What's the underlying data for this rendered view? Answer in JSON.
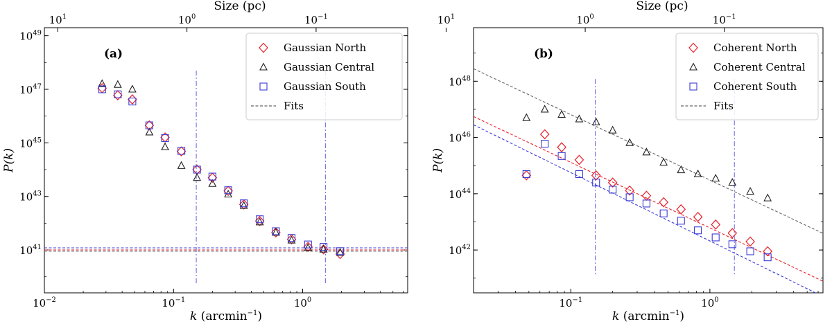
{
  "chart_data": [
    {
      "type": "scatter",
      "panel": "(a)",
      "xlabel_base": "k (arcmin",
      "xlabel_exp": "−1",
      "xlabel_end": ")",
      "ylabel": "P(k)",
      "top_axis_label": "Size (pc)",
      "xscale": "log",
      "yscale": "log",
      "xlim": [
        0.01,
        6.5
      ],
      "ylim": [
        2.5e+39,
        2e+49
      ],
      "x_ticks": [
        {
          "value": 0.01,
          "base": "10",
          "exp": "−2"
        },
        {
          "value": 0.1,
          "base": "10",
          "exp": "−1"
        },
        {
          "value": 1,
          "base": "10",
          "exp": "0"
        }
      ],
      "y_ticks": [
        {
          "value": 1e+41,
          "base": "10",
          "exp": "41"
        },
        {
          "value": 1e+43,
          "base": "10",
          "exp": "43"
        },
        {
          "value": 1e+45,
          "base": "10",
          "exp": "45"
        },
        {
          "value": 1e+47,
          "base": "10",
          "exp": "47"
        },
        {
          "value": 1e+49,
          "base": "10",
          "exp": "49"
        }
      ],
      "top_ticks": [
        {
          "value": 0.0127,
          "base": "10",
          "exp": "1"
        },
        {
          "value": 0.127,
          "base": "10",
          "exp": "0"
        },
        {
          "value": 1.27,
          "base": "10",
          "exp": "−1"
        }
      ],
      "vlines": [
        0.15,
        1.5
      ],
      "vline_yrange": [
        5e+39,
        5e+47
      ],
      "legend_position": "top-right",
      "series": [
        {
          "name": "Gaussian North",
          "marker": "diamond",
          "color": "#e8202a",
          "x": [
            0.028,
            0.037,
            0.048,
            0.065,
            0.086,
            0.115,
            0.152,
            0.2,
            0.265,
            0.35,
            0.465,
            0.62,
            0.82,
            1.1,
            1.45,
            1.95
          ],
          "y": [
            1.1e+47,
            6e+46,
            4.2e+46,
            4.5e+45,
            1.6e+45,
            4.8e+44,
            1e+44,
            5e+43,
            1.6e+43,
            5e+42,
            1.2e+42,
            4.5e+41,
            2.5e+41,
            1.3e+41,
            1.05e+41,
            7e+40
          ]
        },
        {
          "name": "Gaussian Central",
          "marker": "triangle",
          "color": "#222222",
          "x": [
            0.028,
            0.037,
            0.048,
            0.065,
            0.086,
            0.115,
            0.152,
            0.2,
            0.265,
            0.35,
            0.465,
            0.62,
            0.82,
            1.1,
            1.45,
            1.95
          ],
          "y": [
            1.6e+47,
            1.5e+47,
            1e+47,
            2.5e+45,
            7e+44,
            1.4e+44,
            5e+43,
            3e+43,
            1.2e+43,
            4.5e+42,
            1.1e+42,
            4.5e+41,
            2.3e+41,
            1.2e+41,
            1.05e+41,
            8e+40
          ]
        },
        {
          "name": "Gaussian South",
          "marker": "square",
          "color": "#3b3bd4",
          "x": [
            0.028,
            0.037,
            0.048,
            0.065,
            0.086,
            0.115,
            0.152,
            0.2,
            0.265,
            0.35,
            0.465,
            0.62,
            0.82,
            1.1,
            1.45,
            1.95
          ],
          "y": [
            1e+47,
            6.5e+46,
            3.5e+46,
            4.5e+45,
            1.5e+45,
            5e+44,
            1e+44,
            5.5e+43,
            1.7e+43,
            5.5e+42,
            1.4e+42,
            5e+41,
            2.8e+41,
            1.6e+41,
            1.3e+41,
            9e+40
          ]
        }
      ],
      "fits": [
        {
          "name": "Gaussian North fit",
          "color": "#e8202a",
          "A": 0.76,
          "alpha": 3.4,
          "floor": 1e+41
        },
        {
          "name": "Gaussian South fit",
          "color": "#3b3bd4",
          "A": 0.55,
          "alpha": 3.5,
          "floor": 1.2e+41
        },
        {
          "name": "Gaussian Central fit",
          "color": "#666666",
          "A": 0.00025,
          "alpha": 2.85,
          "floor": 9e+40
        }
      ],
      "legend": [
        {
          "label": "Gaussian North",
          "marker": "diamond",
          "color": "#e8202a"
        },
        {
          "label": "Gaussian Central",
          "marker": "triangle",
          "color": "#222222"
        },
        {
          "label": "Gaussian South",
          "marker": "square",
          "color": "#3b3bd4"
        },
        {
          "label": "Fits",
          "marker": "dash",
          "color": "#666666"
        }
      ]
    },
    {
      "type": "scatter",
      "panel": "(b)",
      "xlabel_base": "k (arcmin",
      "xlabel_exp": "−1",
      "xlabel_end": ")",
      "ylabel": "P(k)",
      "top_axis_label": "Size (pc)",
      "xscale": "log",
      "yscale": "log",
      "xlim": [
        0.02,
        6.5
      ],
      "ylim": [
        3e+40,
        8e+49
      ],
      "x_ticks": [
        {
          "value": 0.1,
          "base": "10",
          "exp": "−1"
        },
        {
          "value": 1,
          "base": "10",
          "exp": "0"
        }
      ],
      "y_ticks": [
        {
          "value": 1e+42,
          "base": "10",
          "exp": "42"
        },
        {
          "value": 1e+44,
          "base": "10",
          "exp": "44"
        },
        {
          "value": 1e+46,
          "base": "10",
          "exp": "46"
        },
        {
          "value": 1e+48,
          "base": "10",
          "exp": "48"
        }
      ],
      "top_ticks": [
        {
          "value": 0.0127,
          "base": "10",
          "exp": "1"
        },
        {
          "value": 0.127,
          "base": "10",
          "exp": "0"
        },
        {
          "value": 1.27,
          "base": "10",
          "exp": "−1"
        }
      ],
      "vlines": [
        0.15,
        1.5
      ],
      "vline_yrange": [
        1.2e+41,
        1.2e+48
      ],
      "legend_position": "top-right",
      "series": [
        {
          "name": "Coherent North",
          "marker": "diamond",
          "color": "#e8202a",
          "x": [
            0.048,
            0.065,
            0.086,
            0.115,
            0.152,
            0.2,
            0.265,
            0.35,
            0.465,
            0.62,
            0.82,
            1.1,
            1.45,
            1.95,
            2.6
          ],
          "y": [
            4.5e+44,
            1.3e+46,
            4.5e+45,
            1.6e+45,
            4.5e+44,
            2.5e+44,
            1.3e+44,
            8.5e+43,
            5e+43,
            2.8e+43,
            1.5e+43,
            8e+42,
            4e+42,
            2e+42,
            9e+41
          ]
        },
        {
          "name": "Coherent Central",
          "marker": "triangle",
          "color": "#222222",
          "x": [
            0.048,
            0.065,
            0.086,
            0.115,
            0.152,
            0.2,
            0.265,
            0.35,
            0.465,
            0.62,
            0.82,
            1.1,
            1.45,
            1.95,
            2.6
          ],
          "y": [
            5e+46,
            1e+47,
            6.5e+46,
            4.5e+46,
            3.5e+46,
            1.8e+46,
            6.5e+45,
            3e+45,
            1.3e+45,
            7e+44,
            5e+44,
            3.5e+44,
            2.5e+44,
            1.2e+44,
            7e+43
          ]
        },
        {
          "name": "Coherent South",
          "marker": "square",
          "color": "#3b3bd4",
          "x": [
            0.048,
            0.065,
            0.086,
            0.115,
            0.152,
            0.2,
            0.265,
            0.35,
            0.465,
            0.62,
            0.82,
            1.1,
            1.45,
            1.95,
            2.6
          ],
          "y": [
            5e+44,
            6e+45,
            2.2e+45,
            5e+44,
            2.5e+44,
            1.4e+44,
            7.5e+43,
            4.5e+43,
            2e+43,
            1.1e+43,
            5e+42,
            2.8e+42,
            1.6e+42,
            9e+41,
            5.5e+41
          ]
        }
      ],
      "fits": [
        {
          "name": "Coherent North fit",
          "color": "#e8202a",
          "A": 6.1e+42,
          "alpha": 2.33,
          "floor": 0
        },
        {
          "name": "Coherent South fit",
          "color": "#3b3bd4",
          "A": 2.1e+42,
          "alpha": 2.43,
          "floor": 0
        },
        {
          "name": "Coherent Central fit",
          "color": "#666666",
          "A": 3.06e+44,
          "alpha": 2.33,
          "floor": 0
        }
      ],
      "legend": [
        {
          "label": "Coherent North",
          "marker": "diamond",
          "color": "#e8202a"
        },
        {
          "label": "Coherent Central",
          "marker": "triangle",
          "color": "#222222"
        },
        {
          "label": "Coherent South",
          "marker": "square",
          "color": "#3b3bd4"
        },
        {
          "label": "Fits",
          "marker": "dash",
          "color": "#666666"
        }
      ]
    }
  ]
}
